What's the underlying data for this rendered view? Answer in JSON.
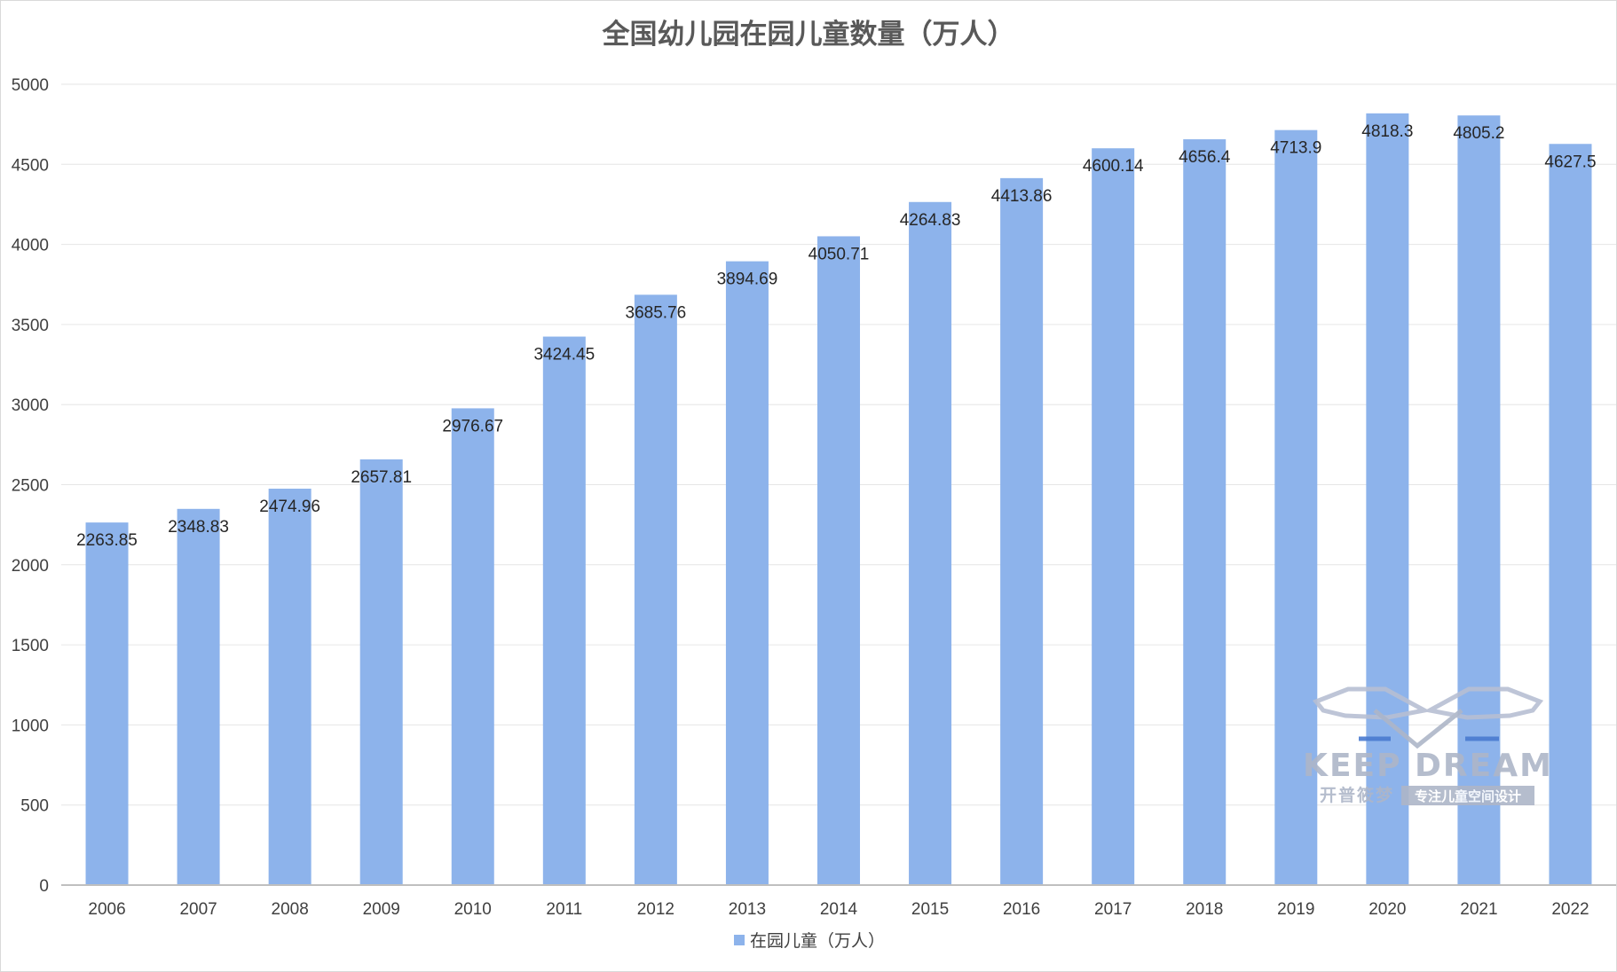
{
  "chart_data": {
    "type": "bar",
    "title": "全国幼儿园在园儿童数量（万人）",
    "categories": [
      "2006",
      "2007",
      "2008",
      "2009",
      "2010",
      "2011",
      "2012",
      "2013",
      "2014",
      "2015",
      "2016",
      "2017",
      "2018",
      "2019",
      "2020",
      "2021",
      "2022"
    ],
    "series": [
      {
        "name": "在园儿童（万人）",
        "values": [
          2263.85,
          2348.83,
          2474.96,
          2657.81,
          2976.67,
          3424.45,
          3685.76,
          3894.69,
          4050.71,
          4264.83,
          4413.86,
          4600.14,
          4656.4,
          4713.9,
          4818.3,
          4805.2,
          4627.5
        ],
        "labels": [
          "2263.85",
          "2348.83",
          "2474.96",
          "2657.81",
          "2976.67",
          "3424.45",
          "3685.76",
          "3894.69",
          "4050.71",
          "4264.83",
          "4413.86",
          "4600.14",
          "4656.4",
          "4713.9",
          "4818.3",
          "4805.2",
          "4627.5"
        ]
      }
    ],
    "ylim": [
      0,
      5000
    ],
    "yticks": [
      0,
      500,
      1000,
      1500,
      2000,
      2500,
      3000,
      3500,
      4000,
      4500,
      5000
    ],
    "grid": true,
    "legend_position": "bottom",
    "colors": {
      "bar": "#8db3eb",
      "grid": "#e6e6e6",
      "axis": "#bfbfbf"
    }
  },
  "watermark": {
    "brand": "KEEP DREAM",
    "name_cn": "开普筱梦",
    "tagline": "专注儿童空间设计"
  }
}
